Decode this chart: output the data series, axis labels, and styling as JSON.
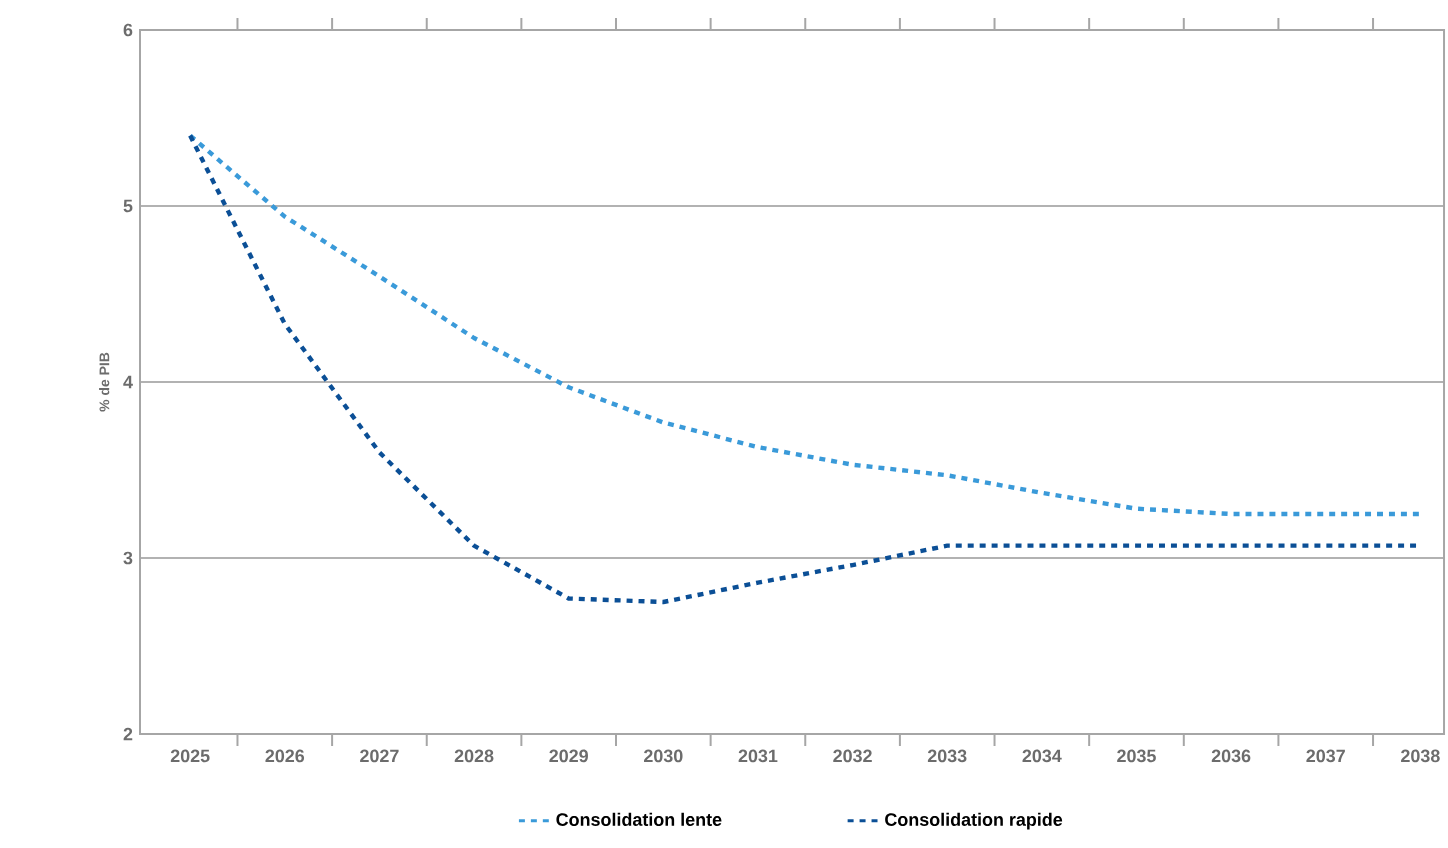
{
  "chart_data": {
    "type": "line",
    "ylabel": "% de PIB",
    "categories": [
      "2025",
      "2026",
      "2027",
      "2028",
      "2029",
      "2030",
      "2031",
      "2032",
      "2033",
      "2034",
      "2035",
      "2036",
      "2037",
      "2038"
    ],
    "series": [
      {
        "name": "Consolidation lente",
        "color": "#3a9ad9",
        "values": [
          5.4,
          4.94,
          4.6,
          4.25,
          3.97,
          3.77,
          3.63,
          3.53,
          3.47,
          3.37,
          3.28,
          3.25,
          3.25,
          3.25
        ]
      },
      {
        "name": "Consolidation rapide",
        "color": "#0b4f96",
        "values": [
          5.4,
          4.33,
          3.6,
          3.07,
          2.77,
          2.75,
          2.86,
          2.96,
          3.07,
          3.07,
          3.07,
          3.07,
          3.07,
          3.07
        ]
      }
    ],
    "ylim": [
      2,
      6
    ],
    "yticks": [
      2,
      3,
      4,
      5,
      6
    ],
    "grid": "y",
    "legend": "bottom",
    "marker": "none",
    "line_style": "dashed"
  }
}
